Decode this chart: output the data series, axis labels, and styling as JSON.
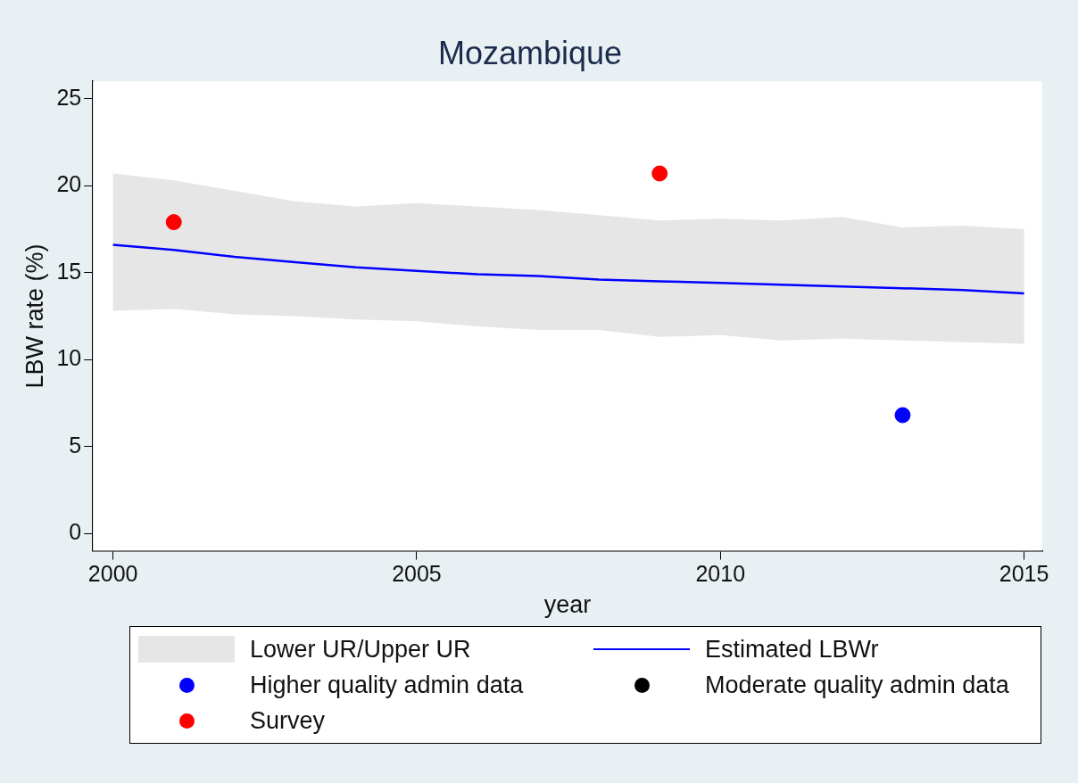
{
  "chart_data": {
    "type": "line",
    "title": "Mozambique",
    "xlabel": "year",
    "ylabel": "LBW rate (%)",
    "xlim": [
      1999.67,
      2015.3
    ],
    "xticks": [
      2000,
      2005,
      2010,
      2015
    ],
    "ylim": [
      -1,
      26
    ],
    "yticks": [
      0,
      5,
      10,
      15,
      20,
      25
    ],
    "grid": false,
    "legend": "bottom",
    "series": [
      {
        "name": "Lower UR/Upper UR",
        "type": "area",
        "color": "#e6e6e6"
      },
      {
        "name": "Estimated LBWr",
        "color": "#0000ff",
        "marker": "none",
        "x": [
          2000,
          2001,
          2002,
          2003,
          2004,
          2005,
          2006,
          2007,
          2008,
          2009,
          2010,
          2011,
          2012,
          2013,
          2014,
          2015
        ],
        "values": [
          16.6,
          16.3,
          15.9,
          15.6,
          15.3,
          15.1,
          14.9,
          14.8,
          14.6,
          14.5,
          14.4,
          14.3,
          14.2,
          14.1,
          14.0,
          13.8
        ],
        "lower": [
          12.8,
          12.9,
          12.6,
          12.5,
          12.3,
          12.2,
          11.9,
          11.7,
          11.7,
          11.3,
          11.4,
          11.1,
          11.2,
          11.1,
          11.0,
          10.9
        ],
        "upper": [
          20.7,
          20.3,
          19.7,
          19.1,
          18.8,
          19.0,
          18.8,
          18.6,
          18.3,
          18.0,
          18.1,
          18.0,
          18.2,
          17.6,
          17.7,
          17.5
        ]
      },
      {
        "name": "Higher quality admin data",
        "type": "scatter",
        "color": "#0000ff",
        "marker": "circle",
        "x": [
          2013
        ],
        "values": [
          6.8
        ]
      },
      {
        "name": "Moderate quality admin data",
        "type": "scatter",
        "color": "#000000",
        "marker": "circle"
      },
      {
        "name": "Survey",
        "type": "scatter",
        "color": "#ff0000",
        "marker": "circle",
        "x": [
          2001,
          2009
        ],
        "values": [
          17.9,
          20.7
        ]
      }
    ]
  }
}
